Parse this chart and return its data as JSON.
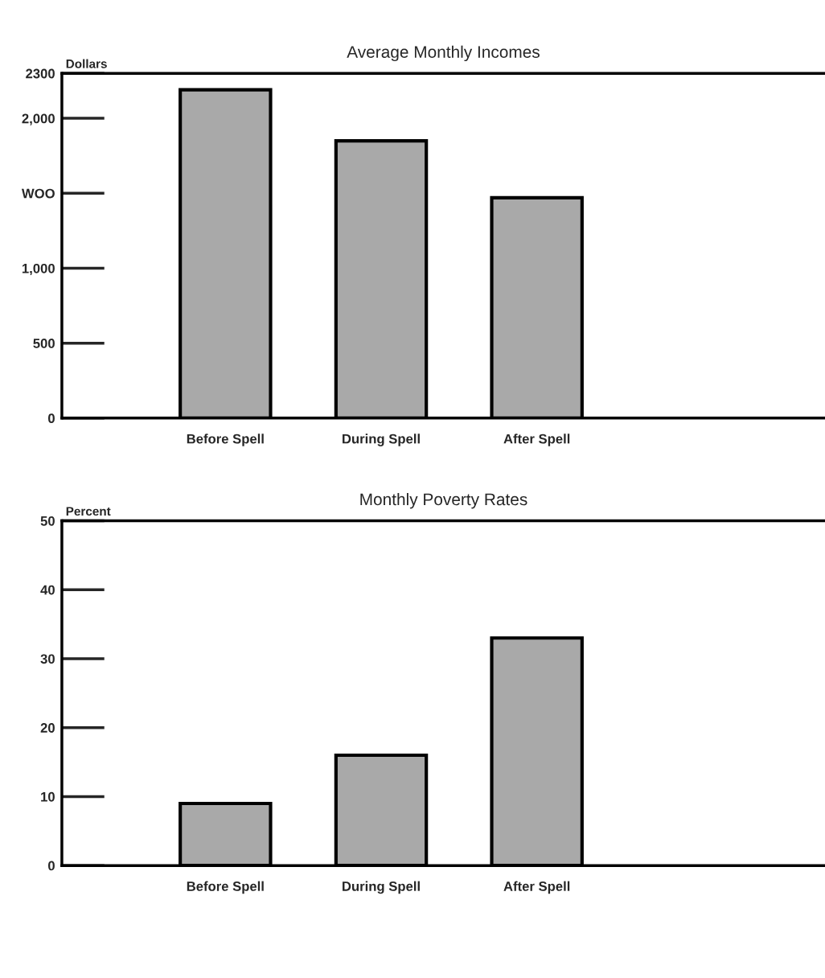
{
  "chart_data": [
    {
      "type": "bar",
      "title": "Average Monthly Incomes",
      "ylabel": "Dollars",
      "categories": [
        "Before Spell",
        "During Spell",
        "After Spell"
      ],
      "values": [
        2190,
        1850,
        1470
      ],
      "color": "#a9a9a9",
      "ylim": [
        0,
        2300
      ],
      "yticks": [
        0,
        500,
        {
          "value": 1000,
          "label": "1,000"
        },
        {
          "value": 1500,
          "label": "WOO"
        },
        {
          "value": 2000,
          "label": "2,000"
        },
        2300
      ],
      "grid": false,
      "legend": false
    },
    {
      "type": "bar",
      "title": "Monthly Poverty Rates",
      "ylabel": "Percent",
      "categories": [
        "Before Spell",
        "During Spell",
        "After Spell"
      ],
      "values": [
        9,
        16,
        33
      ],
      "color": "#a9a9a9",
      "ylim": [
        0,
        50
      ],
      "yticks": [
        0,
        10,
        20,
        30,
        40,
        50
      ],
      "grid": false,
      "legend": false
    }
  ]
}
